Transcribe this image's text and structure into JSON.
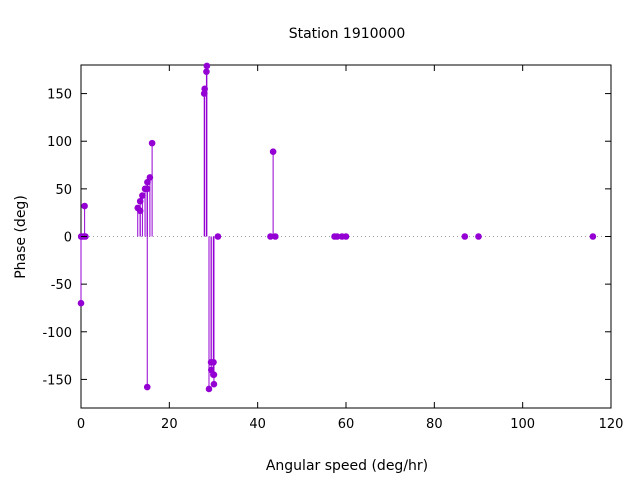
{
  "chart_data": {
    "type": "scatter",
    "title": "Station 1910000",
    "xlabel": "Angular speed (deg/hr)",
    "ylabel": "Phase (deg)",
    "xlim": [
      0,
      120
    ],
    "ylim": [
      -180,
      180
    ],
    "xticks": [
      0,
      20,
      40,
      60,
      80,
      100,
      120
    ],
    "yticks": [
      -150,
      -100,
      -50,
      0,
      50,
      100,
      150
    ],
    "x_tick_labels": [
      "0",
      "20",
      "40",
      "60",
      "80",
      "100",
      "120"
    ],
    "y_tick_labels": [
      "-150",
      "-100",
      "-50",
      "0",
      "50",
      "100",
      "150"
    ],
    "style": "impulses-with-points",
    "series_color": "#9400d3",
    "zero_line": "dotted",
    "grid": false,
    "points": [
      {
        "x": 0.0,
        "y": -70
      },
      {
        "x": 0.04,
        "y": 0
      },
      {
        "x": 0.08,
        "y": 0
      },
      {
        "x": 0.54,
        "y": 0
      },
      {
        "x": 1.0,
        "y": 0
      },
      {
        "x": 0.82,
        "y": 32
      },
      {
        "x": 12.85,
        "y": 30
      },
      {
        "x": 13.4,
        "y": 27
      },
      {
        "x": 13.4,
        "y": 37
      },
      {
        "x": 13.9,
        "y": 43
      },
      {
        "x": 14.5,
        "y": 50
      },
      {
        "x": 14.96,
        "y": 50
      },
      {
        "x": 15.0,
        "y": -158
      },
      {
        "x": 15.04,
        "y": 57
      },
      {
        "x": 15.6,
        "y": 62
      },
      {
        "x": 16.1,
        "y": 98
      },
      {
        "x": 27.9,
        "y": 150
      },
      {
        "x": 28.0,
        "y": 155
      },
      {
        "x": 28.4,
        "y": 173
      },
      {
        "x": 28.5,
        "y": 179
      },
      {
        "x": 28.98,
        "y": -160
      },
      {
        "x": 29.45,
        "y": -132
      },
      {
        "x": 29.5,
        "y": -140
      },
      {
        "x": 29.96,
        "y": -145
      },
      {
        "x": 30.0,
        "y": -132
      },
      {
        "x": 30.1,
        "y": -145
      },
      {
        "x": 30.1,
        "y": -155
      },
      {
        "x": 31.0,
        "y": 0
      },
      {
        "x": 42.9,
        "y": 0
      },
      {
        "x": 43.5,
        "y": 89
      },
      {
        "x": 44.0,
        "y": 0
      },
      {
        "x": 57.4,
        "y": 0
      },
      {
        "x": 58.0,
        "y": 0
      },
      {
        "x": 59.1,
        "y": 0
      },
      {
        "x": 60.0,
        "y": 0
      },
      {
        "x": 86.9,
        "y": 0
      },
      {
        "x": 90.0,
        "y": 0
      },
      {
        "x": 115.9,
        "y": 0
      }
    ]
  }
}
